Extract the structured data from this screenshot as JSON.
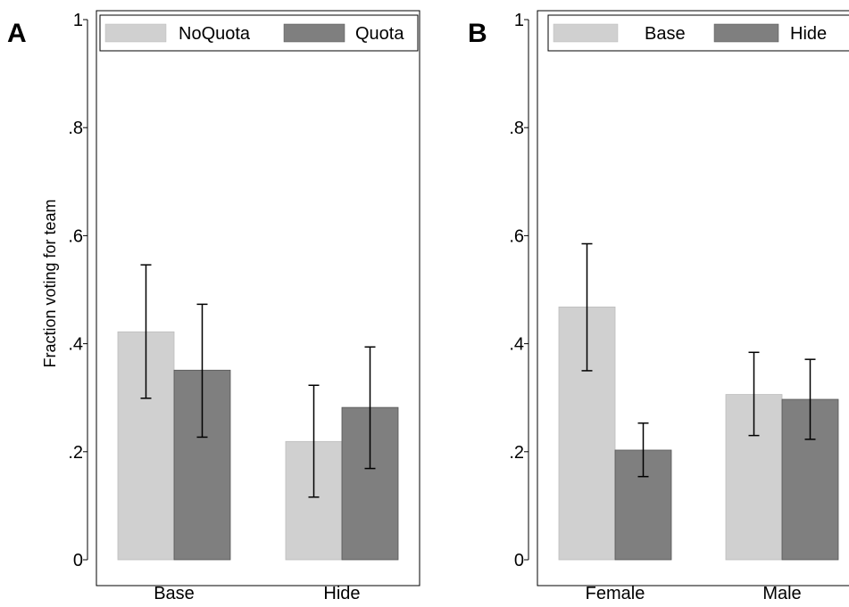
{
  "chart_data": [
    {
      "panel": "A",
      "type": "bar",
      "ylabel": "Fraction voting for team",
      "xlabel": "",
      "ylim": [
        0,
        1
      ],
      "yticks": [
        {
          "value": 0,
          "label": "0"
        },
        {
          "value": 0.2,
          "label": ".2"
        },
        {
          "value": 0.4,
          "label": ".4"
        },
        {
          "value": 0.6,
          "label": ".6"
        },
        {
          "value": 0.8,
          "label": ".8"
        },
        {
          "value": 1,
          "label": "1"
        }
      ],
      "categories": [
        "Base",
        "Hide"
      ],
      "series": [
        {
          "name": "NoQuota",
          "color": "#d0d0d0",
          "values": [
            0.422,
            0.219
          ],
          "ci_low": [
            0.299,
            0.116
          ],
          "ci_high": [
            0.546,
            0.323
          ]
        },
        {
          "name": "Quota",
          "color": "#7f7f7f",
          "values": [
            0.351,
            0.282
          ],
          "ci_low": [
            0.227,
            0.169
          ],
          "ci_high": [
            0.473,
            0.394
          ]
        }
      ],
      "legend_position": "top"
    },
    {
      "panel": "B",
      "type": "bar",
      "ylabel": "",
      "xlabel": "",
      "ylim": [
        0,
        1
      ],
      "yticks": [
        {
          "value": 0,
          "label": "0"
        },
        {
          "value": 0.2,
          "label": ".2"
        },
        {
          "value": 0.4,
          "label": ".4"
        },
        {
          "value": 0.6,
          "label": ".6"
        },
        {
          "value": 0.8,
          "label": ".8"
        },
        {
          "value": 1,
          "label": "1"
        }
      ],
      "categories": [
        "Female",
        "Male"
      ],
      "series": [
        {
          "name": "Base",
          "color": "#d0d0d0",
          "values": [
            0.468,
            0.306
          ],
          "ci_low": [
            0.35,
            0.23
          ],
          "ci_high": [
            0.585,
            0.384
          ]
        },
        {
          "name": "Hide",
          "color": "#7f7f7f",
          "values": [
            0.203,
            0.297
          ],
          "ci_low": [
            0.154,
            0.223
          ],
          "ci_high": [
            0.253,
            0.371
          ]
        }
      ],
      "legend_position": "top"
    }
  ]
}
